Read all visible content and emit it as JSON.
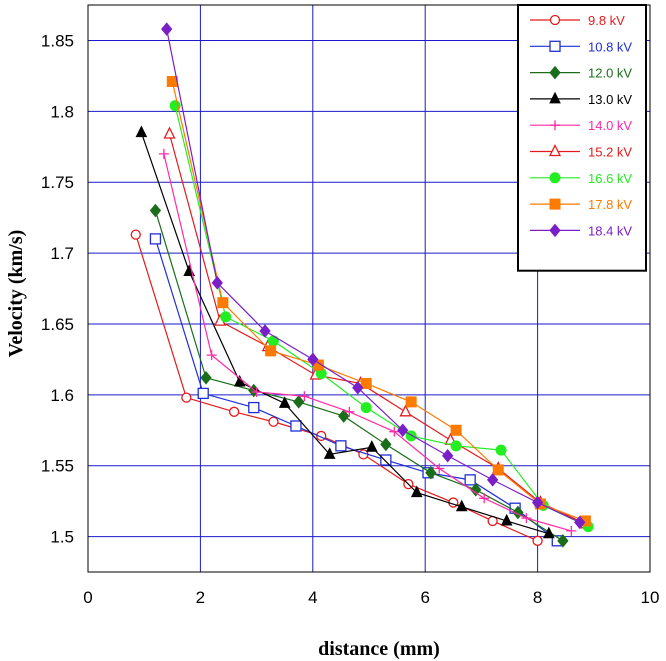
{
  "chart_data": {
    "type": "line",
    "title": "",
    "xlabel": "distance (mm)",
    "ylabel": "Velocity (km/s)",
    "xlim": [
      0,
      10
    ],
    "ylim": [
      1.475,
      1.875
    ],
    "x_ticks": [
      "0",
      "2",
      "4",
      "6",
      "8",
      "10"
    ],
    "y_ticks": [
      "1.5",
      "1.55",
      "1.6",
      "1.65",
      "1.7",
      "1.75",
      "1.8",
      "1.85"
    ],
    "grid": true,
    "legend_position": "top-right",
    "series": [
      {
        "name": "9.8 kV",
        "color": "#e41a1c",
        "marker": "circle-open",
        "x": [
          0.85,
          1.75,
          2.6,
          3.3,
          4.15,
          4.9,
          5.7,
          6.5,
          7.2,
          8.0
        ],
        "y": [
          1.713,
          1.598,
          1.588,
          1.581,
          1.571,
          1.558,
          1.537,
          1.524,
          1.511,
          1.497
        ]
      },
      {
        "name": "10.8 kV",
        "color": "#1f2fd6",
        "marker": "square-open",
        "x": [
          1.2,
          2.05,
          2.95,
          3.7,
          4.5,
          5.3,
          6.05,
          6.8,
          7.6,
          8.35
        ],
        "y": [
          1.71,
          1.601,
          1.591,
          1.578,
          1.564,
          1.554,
          1.545,
          1.54,
          1.52,
          1.497
        ]
      },
      {
        "name": "12.0 kV",
        "color": "#1a6e1a",
        "marker": "diamond",
        "x": [
          1.2,
          2.1,
          2.95,
          3.75,
          4.55,
          5.3,
          6.1,
          6.9,
          7.65,
          8.45
        ],
        "y": [
          1.73,
          1.612,
          1.603,
          1.595,
          1.585,
          1.565,
          1.545,
          1.533,
          1.517,
          1.497
        ]
      },
      {
        "name": "13.0 kV",
        "color": "#000000",
        "marker": "triangle",
        "x": [
          0.95,
          1.8,
          2.7,
          3.5,
          4.3,
          5.05,
          5.85,
          6.65,
          7.45,
          8.2
        ],
        "y": [
          1.785,
          1.687,
          1.609,
          1.594,
          1.558,
          1.563,
          1.531,
          1.521,
          1.511,
          1.502
        ]
      },
      {
        "name": "14.0 kV",
        "color": "#ff2aa5",
        "marker": "plus",
        "x": [
          1.35,
          2.2,
          3.0,
          3.85,
          4.65,
          5.45,
          6.25,
          7.05,
          7.8,
          8.6
        ],
        "y": [
          1.77,
          1.628,
          1.602,
          1.599,
          1.588,
          1.574,
          1.548,
          1.527,
          1.513,
          1.504
        ]
      },
      {
        "name": "15.2 kV",
        "color": "#e41a1c",
        "marker": "triangle-open",
        "x": [
          1.45,
          2.35,
          3.2,
          4.05,
          4.85,
          5.65,
          6.45,
          7.3,
          8.05,
          8.85
        ],
        "y": [
          1.784,
          1.652,
          1.634,
          1.614,
          1.608,
          1.588,
          1.568,
          1.548,
          1.524,
          1.509
        ]
      },
      {
        "name": "16.6 kV",
        "color": "#22ee22",
        "marker": "circle",
        "x": [
          1.55,
          2.45,
          3.3,
          4.15,
          4.95,
          5.75,
          6.55,
          7.35,
          8.1,
          8.9
        ],
        "y": [
          1.804,
          1.655,
          1.638,
          1.615,
          1.591,
          1.571,
          1.564,
          1.561,
          1.522,
          1.507
        ]
      },
      {
        "name": "17.8 kV",
        "color": "#ff7a00",
        "marker": "square",
        "x": [
          1.5,
          2.4,
          3.25,
          4.1,
          4.95,
          5.75,
          6.55,
          7.3,
          8.05,
          8.85
        ],
        "y": [
          1.821,
          1.665,
          1.631,
          1.621,
          1.608,
          1.595,
          1.575,
          1.547,
          1.523,
          1.511
        ]
      },
      {
        "name": "18.4 kV",
        "color": "#7a1fc8",
        "marker": "diamond",
        "x": [
          1.4,
          2.3,
          3.15,
          4.0,
          4.8,
          5.6,
          6.4,
          7.2,
          8.0,
          8.75
        ],
        "y": [
          1.858,
          1.679,
          1.645,
          1.625,
          1.605,
          1.575,
          1.557,
          1.54,
          1.524,
          1.51
        ]
      }
    ]
  }
}
